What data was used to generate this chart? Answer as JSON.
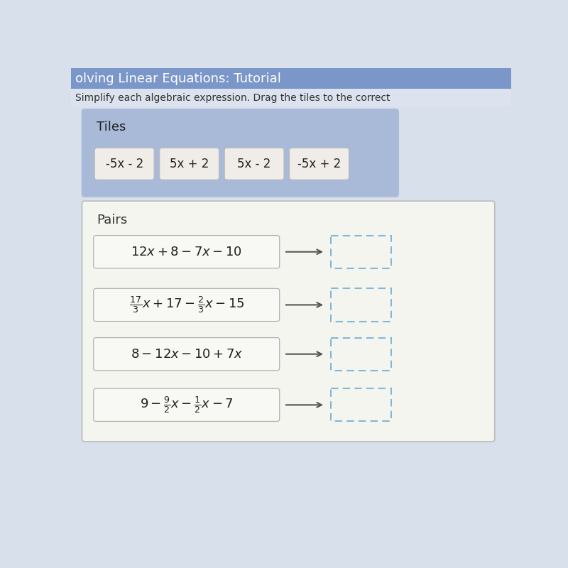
{
  "title_text": "olving Linear Equations: Tutorial",
  "subtitle_text": "Simplify each algebraic expression. Drag the tiles to the correct",
  "title_bg": "#7b96c8",
  "subtitle_bg": "#dce3ee",
  "page_bg": "#d8e0ec",
  "tiles_bg": "#a8bad8",
  "tiles_border": "none",
  "tiles_label": "Tiles",
  "tiles_label_color": "#222222",
  "tile_texts": [
    "-5x - 2",
    "5x + 2",
    "5x - 2",
    "-5x + 2"
  ],
  "tile_bg": "#f0ede8",
  "tile_border": "#bbbbbb",
  "pairs_bg": "#f5f5f0",
  "pairs_border": "#bbbbbb",
  "pairs_label": "Pairs",
  "pairs_label_color": "#333333",
  "expr_bg": "#f8f8f5",
  "expr_border": "#aaaaaa",
  "arrow_color": "#555555",
  "dashed_color": "#80b8d8",
  "font_color": "#222222",
  "title_font_color": "#ffffff",
  "subtitle_font_color": "#333333"
}
